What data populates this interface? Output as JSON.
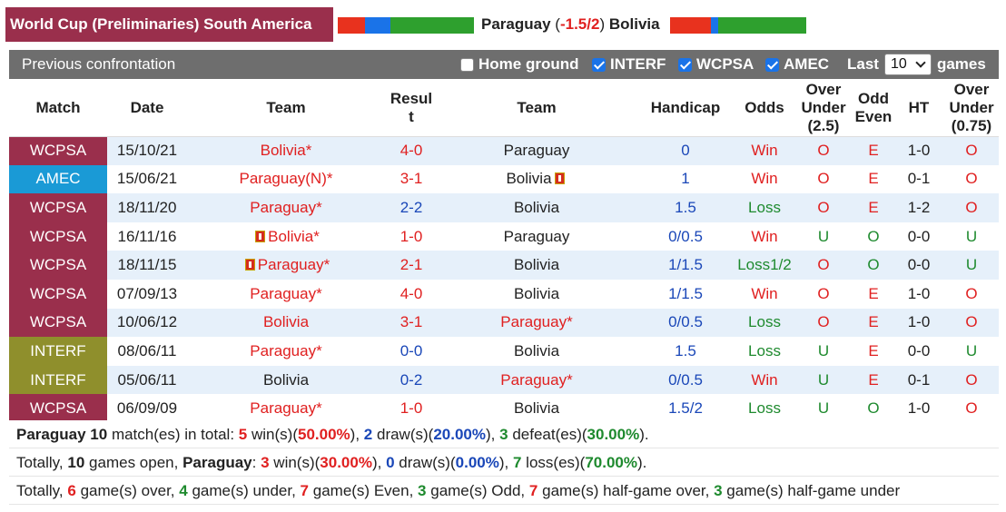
{
  "header": {
    "league": "World Cup (Preliminaries) South America",
    "home_team": "Paraguay",
    "handicap": "-1.5/2",
    "away_team": "Bolivia",
    "colors": {
      "league_bg": "#9a2f4c",
      "red": "#e02020",
      "blue": "#1a47b8",
      "green": "#1e8a2e"
    }
  },
  "controls": {
    "title": "Previous confrontation",
    "home_ground": {
      "label": "Home ground",
      "checked": false
    },
    "filters": [
      {
        "label": "INTERF",
        "checked": true
      },
      {
        "label": "WCPSA",
        "checked": true
      },
      {
        "label": "AMEC",
        "checked": true
      }
    ],
    "last_label": "Last",
    "last_value": "10",
    "games_label": "games"
  },
  "columns": {
    "match": "Match",
    "date": "Date",
    "team": "Team",
    "result_a": "Resul",
    "result_b": "t",
    "team2": "Team",
    "handicap": "Handicap",
    "odds": "Odds",
    "ou_a": "Over",
    "ou_b": "Under",
    "ou_c": "(2.5)",
    "oe_a": "Odd",
    "oe_b": "Even",
    "ht": "HT",
    "ou2_a": "Over",
    "ou2_b": "Under",
    "ou2_c": "(0.75)"
  },
  "rows": [
    {
      "comp": "WCPSA",
      "date": "15/10/21",
      "home": "Bolivia",
      "home_mark": "*",
      "score_h": "4",
      "score_a": "0",
      "away": "Paraguay",
      "away_mark": "",
      "handicap": "0",
      "odds": "Win",
      "ou": "O",
      "oe": "E",
      "ht": "1-0",
      "ou2": "O"
    },
    {
      "comp": "AMEC",
      "date": "15/06/21",
      "home": "Paraguay(N)",
      "home_mark": "*",
      "score_h": "3",
      "score_a": "1",
      "away": "Bolivia",
      "away_mark": "",
      "handicap": "1",
      "odds": "Win",
      "ou": "O",
      "oe": "E",
      "ht": "0-1",
      "ou2": "O"
    },
    {
      "comp": "WCPSA",
      "date": "18/11/20",
      "home": "Paraguay",
      "home_mark": "*",
      "score_h": "2",
      "score_a": "2",
      "away": "Bolivia",
      "away_mark": "",
      "handicap": "1.5",
      "odds": "Loss",
      "ou": "O",
      "oe": "E",
      "ht": "1-2",
      "ou2": "O"
    },
    {
      "comp": "WCPSA",
      "date": "16/11/16",
      "home": "Bolivia",
      "home_mark": "*",
      "score_h": "1",
      "score_a": "0",
      "away": "Paraguay",
      "away_mark": "",
      "handicap": "0/0.5",
      "odds": "Win",
      "ou": "U",
      "oe": "O",
      "ht": "0-0",
      "ou2": "U"
    },
    {
      "comp": "WCPSA",
      "date": "18/11/15",
      "home": "Paraguay",
      "home_mark": "*",
      "score_h": "2",
      "score_a": "1",
      "away": "Bolivia",
      "away_mark": "",
      "handicap": "1/1.5",
      "odds": "Loss1/2",
      "ou": "O",
      "oe": "O",
      "ht": "0-0",
      "ou2": "U"
    },
    {
      "comp": "WCPSA",
      "date": "07/09/13",
      "home": "Paraguay",
      "home_mark": "*",
      "score_h": "4",
      "score_a": "0",
      "away": "Bolivia",
      "away_mark": "",
      "handicap": "1/1.5",
      "odds": "Win",
      "ou": "O",
      "oe": "E",
      "ht": "1-0",
      "ou2": "O"
    },
    {
      "comp": "WCPSA",
      "date": "10/06/12",
      "home": "Bolivia",
      "home_mark": "",
      "score_h": "3",
      "score_a": "1",
      "away": "Paraguay",
      "away_mark": "*",
      "handicap": "0/0.5",
      "odds": "Loss",
      "ou": "O",
      "oe": "E",
      "ht": "1-0",
      "ou2": "O"
    },
    {
      "comp": "INTERF",
      "date": "08/06/11",
      "home": "Paraguay",
      "home_mark": "*",
      "score_h": "0",
      "score_a": "0",
      "away": "Bolivia",
      "away_mark": "",
      "handicap": "1.5",
      "odds": "Loss",
      "ou": "U",
      "oe": "E",
      "ht": "0-0",
      "ou2": "U"
    },
    {
      "comp": "INTERF",
      "date": "05/06/11",
      "home": "Bolivia",
      "home_mark": "",
      "score_h": "0",
      "score_a": "2",
      "away": "Paraguay",
      "away_mark": "*",
      "handicap": "0/0.5",
      "odds": "Win",
      "ou": "U",
      "oe": "E",
      "ht": "0-1",
      "ou2": "O"
    },
    {
      "comp": "WCPSA",
      "date": "06/09/09",
      "home": "Paraguay",
      "home_mark": "*",
      "score_h": "1",
      "score_a": "0",
      "away": "Bolivia",
      "away_mark": "",
      "handicap": "1.5/2",
      "odds": "Loss",
      "ou": "U",
      "oe": "O",
      "ht": "1-0",
      "ou2": "O"
    }
  ],
  "summary": {
    "l1": {
      "team": "Paraguay",
      "num": "10",
      "t1": "match(es) in total:",
      "wins": "5",
      "t2": "win(s)(",
      "win_pct": "50.00%",
      "t3": "),",
      "draws": "2",
      "t4": "draw(s)(",
      "draw_pct": "20.00%",
      "t5": "),",
      "defeats": "3",
      "t6": "defeat(es)(",
      "defeat_pct": "30.00%",
      "t7": ")."
    },
    "l2": {
      "t0": "Totally,",
      "num": "10",
      "t1": "games open,",
      "team": "Paraguay",
      "colon": ":",
      "wins": "3",
      "t2": "win(s)(",
      "win_pct": "30.00%",
      "t3": "),",
      "draws": "0",
      "t4": "draw(s)(",
      "draw_pct": "0.00%",
      "t5": "),",
      "losses": "7",
      "t6": "loss(es)(",
      "loss_pct": "70.00%",
      "t7": ")."
    },
    "l3": {
      "t0": "Totally,",
      "over": "6",
      "t1": "game(s) over,",
      "under": "4",
      "t2": "game(s) under,",
      "even": "7",
      "t3": "game(s) Even,",
      "odd": "3",
      "t4": "game(s) Odd,",
      "hg_over": "7",
      "t5": "game(s) half-game over,",
      "hg_under": "3",
      "t6": "game(s) half-game under"
    }
  }
}
